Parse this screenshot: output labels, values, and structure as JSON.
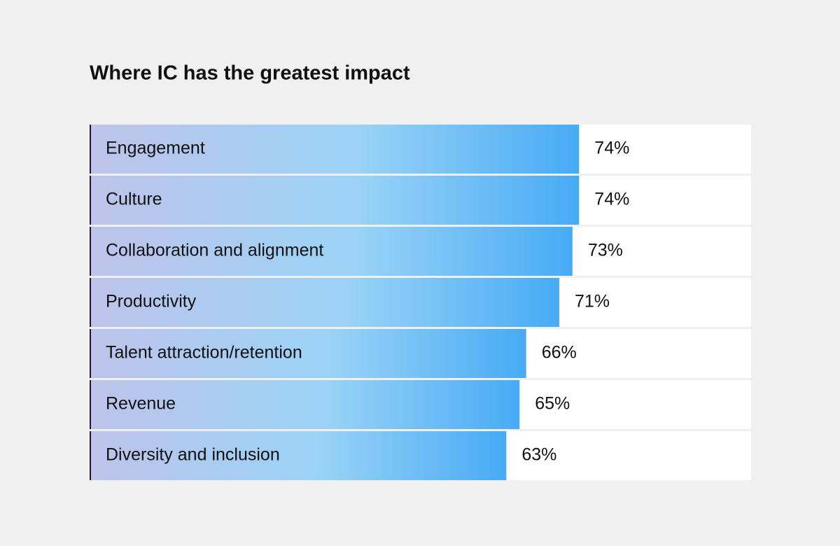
{
  "chart_data": {
    "type": "bar",
    "orientation": "horizontal",
    "title": "Where IC has the greatest impact",
    "categories": [
      "Engagement",
      "Culture",
      "Collaboration and alignment",
      "Productivity",
      "Talent attraction/retention",
      "Revenue",
      "Diversity and inclusion"
    ],
    "values": [
      74,
      74,
      73,
      71,
      66,
      65,
      63
    ],
    "value_labels": [
      "74%",
      "74%",
      "73%",
      "71%",
      "66%",
      "65%",
      "63%"
    ],
    "xlim": [
      0,
      100
    ],
    "gradient": [
      "#bec3ea",
      "#9ad3f6",
      "#47abf5"
    ]
  }
}
